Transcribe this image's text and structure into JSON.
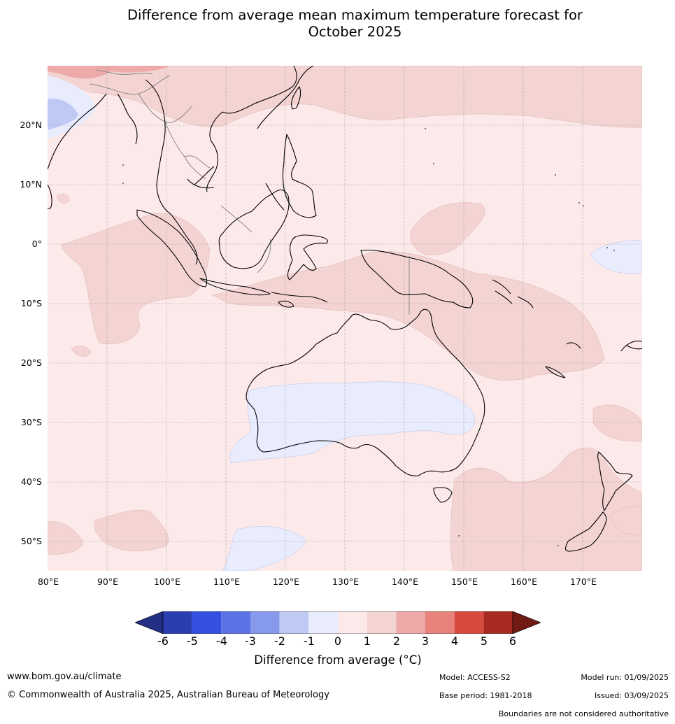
{
  "title": {
    "line1": "Difference from average mean maximum temperature forecast for",
    "line2": "October 2025"
  },
  "map": {
    "lat_labels": [
      "20°N",
      "10°N",
      "0°",
      "10°S",
      "20°S",
      "30°S",
      "40°S",
      "50°S"
    ],
    "lon_labels": [
      "80°E",
      "90°E",
      "100°E",
      "110°E",
      "120°E",
      "130°E",
      "140°E",
      "150°E",
      "160°E",
      "170°E"
    ],
    "extent": {
      "lon_min": 80,
      "lon_max": 180,
      "lat_min": -55,
      "lat_max": 30
    },
    "background_anomaly_class": "0 to 1",
    "colors": {
      "below_0": "#e8ecfc",
      "class_0_1": "#fceaea",
      "class_1_2": "#f4d4d2",
      "class_2_3": "#eeaaa8",
      "class_m1_m2": "#c0c8f4",
      "coastline": "#000000",
      "border": "#888888",
      "grid": "#999999"
    }
  },
  "colorbar": {
    "ticks": [
      "-6",
      "-5",
      "-4",
      "-3",
      "-2",
      "-1",
      "0",
      "1",
      "2",
      "3",
      "4",
      "5",
      "6"
    ],
    "colors": [
      "#222f84",
      "#2a3eb0",
      "#3350e0",
      "#5c73e6",
      "#8799ec",
      "#c0c8f4",
      "#e8ecfc",
      "#fceaea",
      "#f4d4d2",
      "#eeaaa8",
      "#e8837c",
      "#d84a40",
      "#a92a20",
      "#721a14"
    ],
    "label": "Difference from average ($^\\circ$C)",
    "label_display": "Difference from average (°C)"
  },
  "footer": {
    "site": "www.bom.gov.au/climate",
    "copyright": "© Commonwealth of Australia 2025, Australian Bureau of Meteorology",
    "model": "Model: ACCESS-S2",
    "base_period": "Base period: 1981-2018",
    "model_run": "Model run: 01/09/2025",
    "issued": "Issued: 03/09/2025",
    "boundaries_note": "Boundaries are not considered authoritative"
  }
}
